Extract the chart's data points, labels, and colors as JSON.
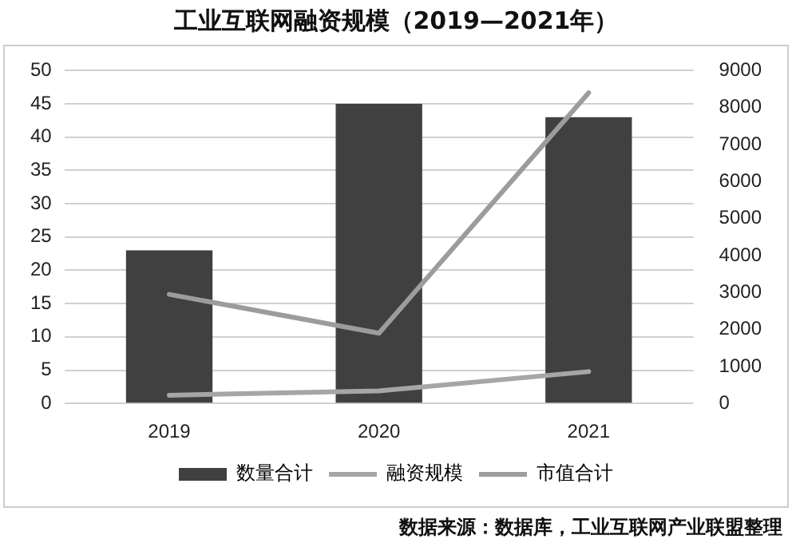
{
  "chart_data": {
    "type": "bar",
    "title": "工业互联网融资规模（2019—2021年）",
    "categories": [
      "2019",
      "2020",
      "2021"
    ],
    "series": [
      {
        "name": "数量合计",
        "color": "#404040",
        "values": [
          23,
          45,
          43
        ]
      },
      {
        "name": "融资规模",
        "type": "line",
        "axis": "y2",
        "color": "#a6a6a6",
        "values": [
          220,
          340,
          860
        ]
      },
      {
        "name": "市值合计",
        "type": "line",
        "axis": "y2",
        "color": "#9c9c9c",
        "values": [
          2950,
          1900,
          8400
        ]
      }
    ],
    "ylim": [
      0,
      50
    ],
    "yticks": [
      0,
      5,
      10,
      15,
      20,
      25,
      30,
      35,
      40,
      45,
      50
    ],
    "y2lim": [
      0,
      9000
    ],
    "y2ticks": [
      0,
      1000,
      2000,
      3000,
      4000,
      5000,
      6000,
      7000,
      8000,
      9000
    ],
    "grid": "y",
    "legend": "bottom",
    "annotations": [
      "数据来源：数据库，工业互联网产业联盟整理"
    ]
  }
}
